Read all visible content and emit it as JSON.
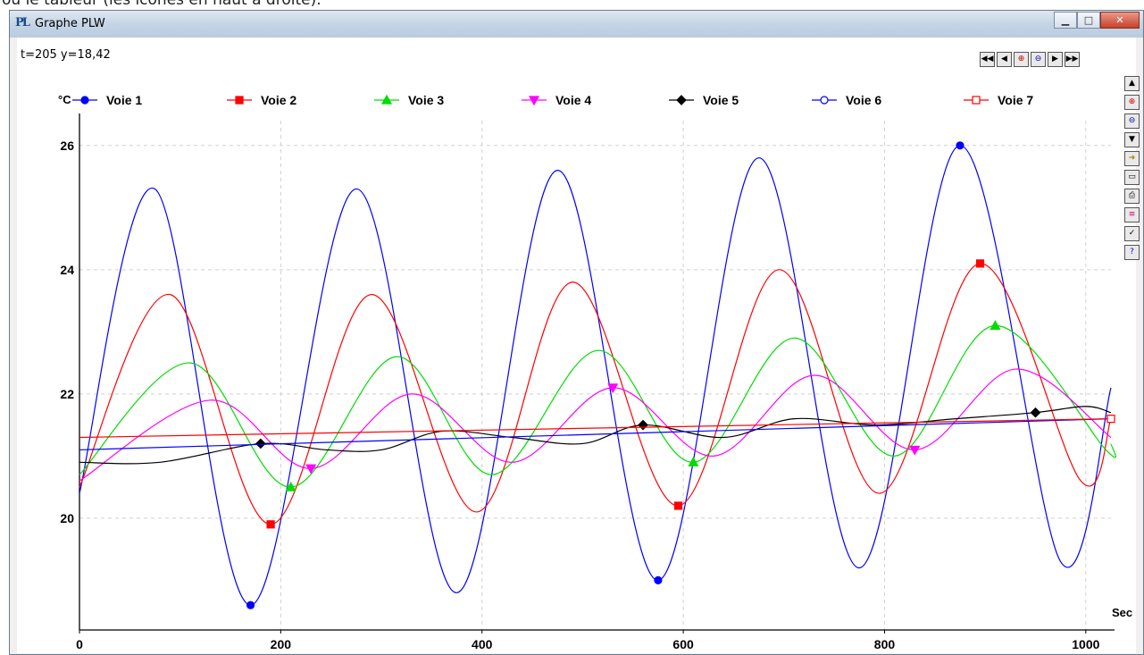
{
  "caption_fragment": "où le tableur (les icônes en haut à droite).",
  "window": {
    "title": "Graphe PLW",
    "app_icon": "PL",
    "icons": [
      "minimize-icon",
      "maximize-icon",
      "close-icon"
    ]
  },
  "readout": "t=205 y=18,42",
  "toolbar_top": [
    "rewind-icon",
    "step-back-icon",
    "zoom-in-icon",
    "zoom-out-icon",
    "step-forward-icon",
    "fast-forward-icon"
  ],
  "toolbar_side": [
    "scroll-up-icon",
    "zoom-in-icon",
    "zoom-out-icon",
    "scroll-down-icon",
    "open-icon",
    "save-icon",
    "print-icon",
    "colors-icon",
    "check-icon",
    "help-icon"
  ],
  "chart_data": {
    "type": "line",
    "yunit": "°C",
    "xunit": "Sec",
    "xlim": [
      0,
      1025
    ],
    "ylim": [
      18.2,
      26.4
    ],
    "xticks": [
      0,
      200,
      400,
      600,
      800,
      1000
    ],
    "yticks": [
      20,
      22,
      24,
      26
    ],
    "grid": true,
    "legend": "top",
    "series": [
      {
        "name": "Voie 1",
        "color": "#0000ff",
        "marker": "circle-filled",
        "x": [
          0,
          75,
          170,
          275,
          375,
          475,
          575,
          675,
          775,
          875,
          975,
          1025
        ],
        "y": [
          20.4,
          25.3,
          18.6,
          25.3,
          18.8,
          25.6,
          19.0,
          25.8,
          19.2,
          26.0,
          19.3,
          22.1
        ]
      },
      {
        "name": "Voie 2",
        "color": "#ff0000",
        "marker": "square-filled",
        "x": [
          0,
          90,
          190,
          290,
          395,
          490,
          595,
          695,
          795,
          895,
          995,
          1025
        ],
        "y": [
          20.5,
          23.6,
          19.9,
          23.6,
          20.1,
          23.8,
          20.2,
          24.0,
          20.4,
          24.1,
          20.6,
          21.6
        ]
      },
      {
        "name": "Voie 3",
        "color": "#00dd00",
        "marker": "triangle-up-filled",
        "x": [
          0,
          110,
          210,
          315,
          410,
          515,
          610,
          710,
          810,
          910,
          1020,
          1025
        ],
        "y": [
          20.7,
          22.5,
          20.5,
          22.6,
          20.7,
          22.7,
          20.9,
          22.9,
          21.0,
          23.1,
          21.1,
          21.2
        ]
      },
      {
        "name": "Voie 4",
        "color": "#ff00ff",
        "marker": "triangle-down-filled",
        "x": [
          0,
          130,
          230,
          330,
          430,
          530,
          630,
          730,
          830,
          930,
          1025
        ],
        "y": [
          20.6,
          21.9,
          20.8,
          22.0,
          20.9,
          22.1,
          21.0,
          22.3,
          21.1,
          22.4,
          21.3
        ]
      },
      {
        "name": "Voie 5",
        "color": "#000000",
        "marker": "diamond-filled",
        "x": [
          0,
          80,
          180,
          245,
          300,
          360,
          430,
          500,
          560,
          640,
          710,
          790,
          870,
          950,
          1000,
          1025
        ],
        "y": [
          20.9,
          20.9,
          21.2,
          21.1,
          21.1,
          21.4,
          21.3,
          21.2,
          21.5,
          21.3,
          21.6,
          21.5,
          21.6,
          21.7,
          21.8,
          21.7
        ]
      },
      {
        "name": "Voie 6",
        "color": "#0000ff",
        "marker": "circle-open",
        "x": [
          0,
          1025
        ],
        "y": [
          21.1,
          21.6
        ]
      },
      {
        "name": "Voie 7",
        "color": "#ff0000",
        "marker": "square-open",
        "x": [
          0,
          1025
        ],
        "y": [
          21.3,
          21.6
        ]
      }
    ]
  }
}
